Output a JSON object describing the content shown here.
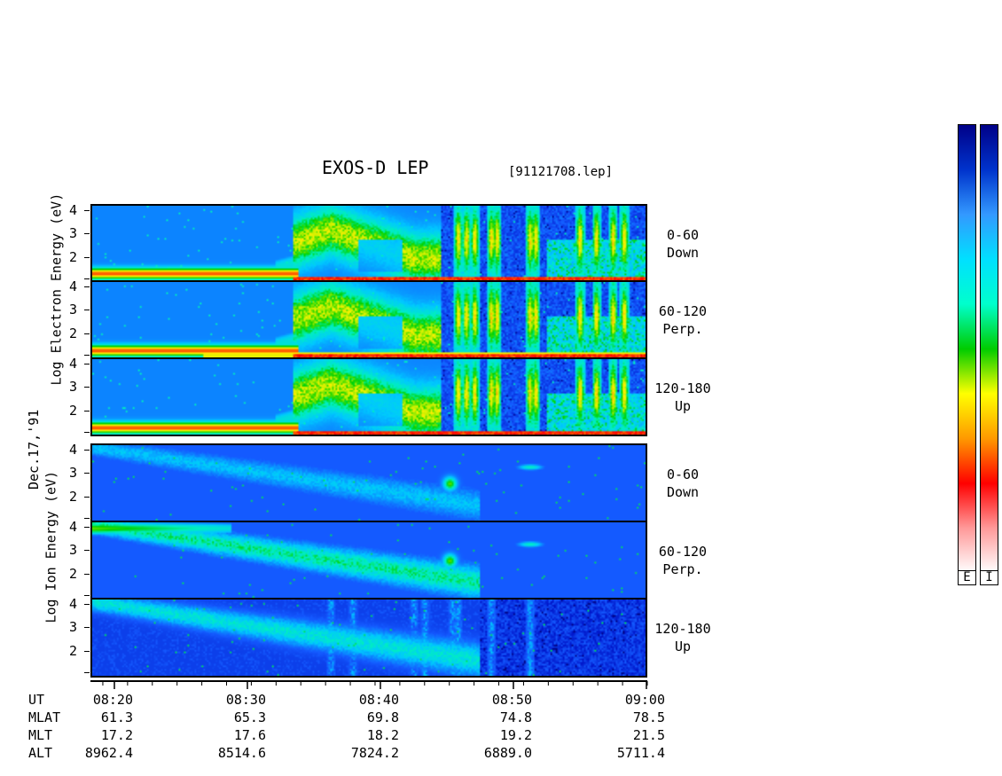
{
  "title": "EXOS-D LEP",
  "filename": "[91121708.lep]",
  "date_label": "Dec.17,'91",
  "electron_ylabel": [
    "Log",
    "Electron",
    "Energy",
    "(eV)"
  ],
  "ion_ylabel": [
    "Log",
    "Ion",
    "Energy",
    "(eV)"
  ],
  "yticks": [
    "4",
    "3",
    "2"
  ],
  "panels": [
    {
      "id": "e-down",
      "species": "electron",
      "angle": "0-60",
      "dir": "Down"
    },
    {
      "id": "e-perp",
      "species": "electron",
      "angle": "60-120",
      "dir": "Perp."
    },
    {
      "id": "e-up",
      "species": "electron",
      "angle": "120-180",
      "dir": "Up"
    },
    {
      "id": "i-down",
      "species": "ion",
      "angle": "0-60",
      "dir": "Down"
    },
    {
      "id": "i-perp",
      "species": "ion",
      "angle": "60-120",
      "dir": "Perp."
    },
    {
      "id": "i-up",
      "species": "ion",
      "angle": "120-180",
      "dir": "Up"
    }
  ],
  "colorbar_labels": [
    "E",
    "I"
  ],
  "colorbar_colors": [
    "#ffffff",
    "#ff9999",
    "#ff0000",
    "#ff9900",
    "#ffff00",
    "#00cc00",
    "#00ffcc",
    "#00e0ff",
    "#3399ff",
    "#0033cc",
    "#000088"
  ],
  "orbit_table": {
    "row_labels": [
      "UT",
      "MLAT",
      "MLT",
      "ALT"
    ],
    "columns": [
      {
        "UT": "08:20",
        "MLAT": "61.3",
        "MLT": "17.2",
        "ALT": "8962.4"
      },
      {
        "UT": "08:30",
        "MLAT": "65.3",
        "MLT": "17.6",
        "ALT": "8514.6"
      },
      {
        "UT": "08:40",
        "MLAT": "69.8",
        "MLT": "18.2",
        "ALT": "7824.2"
      },
      {
        "UT": "08:50",
        "MLAT": "74.8",
        "MLT": "19.2",
        "ALT": "6889.0"
      },
      {
        "UT": "09:00",
        "MLAT": "78.5",
        "MLT": "21.5",
        "ALT": "5711.4"
      }
    ]
  },
  "chart_data": {
    "type": "heatmap",
    "title": "EXOS-D LEP",
    "x": {
      "label": "UT",
      "range": [
        "08:15",
        "09:00"
      ],
      "ticks": [
        "08:20",
        "08:30",
        "08:40",
        "08:50",
        "09:00"
      ]
    },
    "y": {
      "label": "Log Energy (eV)",
      "range": [
        1,
        4.2
      ],
      "ticks": [
        2,
        3,
        4
      ]
    },
    "panels": [
      {
        "species": "Electron",
        "pitch_angle": "0-60",
        "direction": "Down"
      },
      {
        "species": "Electron",
        "pitch_angle": "60-120",
        "direction": "Perp."
      },
      {
        "species": "Electron",
        "pitch_angle": "120-180",
        "direction": "Up"
      },
      {
        "species": "Ion",
        "pitch_angle": "0-60",
        "direction": "Down"
      },
      {
        "species": "Ion",
        "pitch_angle": "60-120",
        "direction": "Perp."
      },
      {
        "species": "Ion",
        "pitch_angle": "120-180",
        "direction": "Up"
      }
    ],
    "features": {
      "electron_low_energy_band_until": "08:31",
      "electron_inverted_v_start": "08:33",
      "ion_bright_spot_time": "08:44",
      "ion_bright_spot_logE": 2.6
    }
  }
}
